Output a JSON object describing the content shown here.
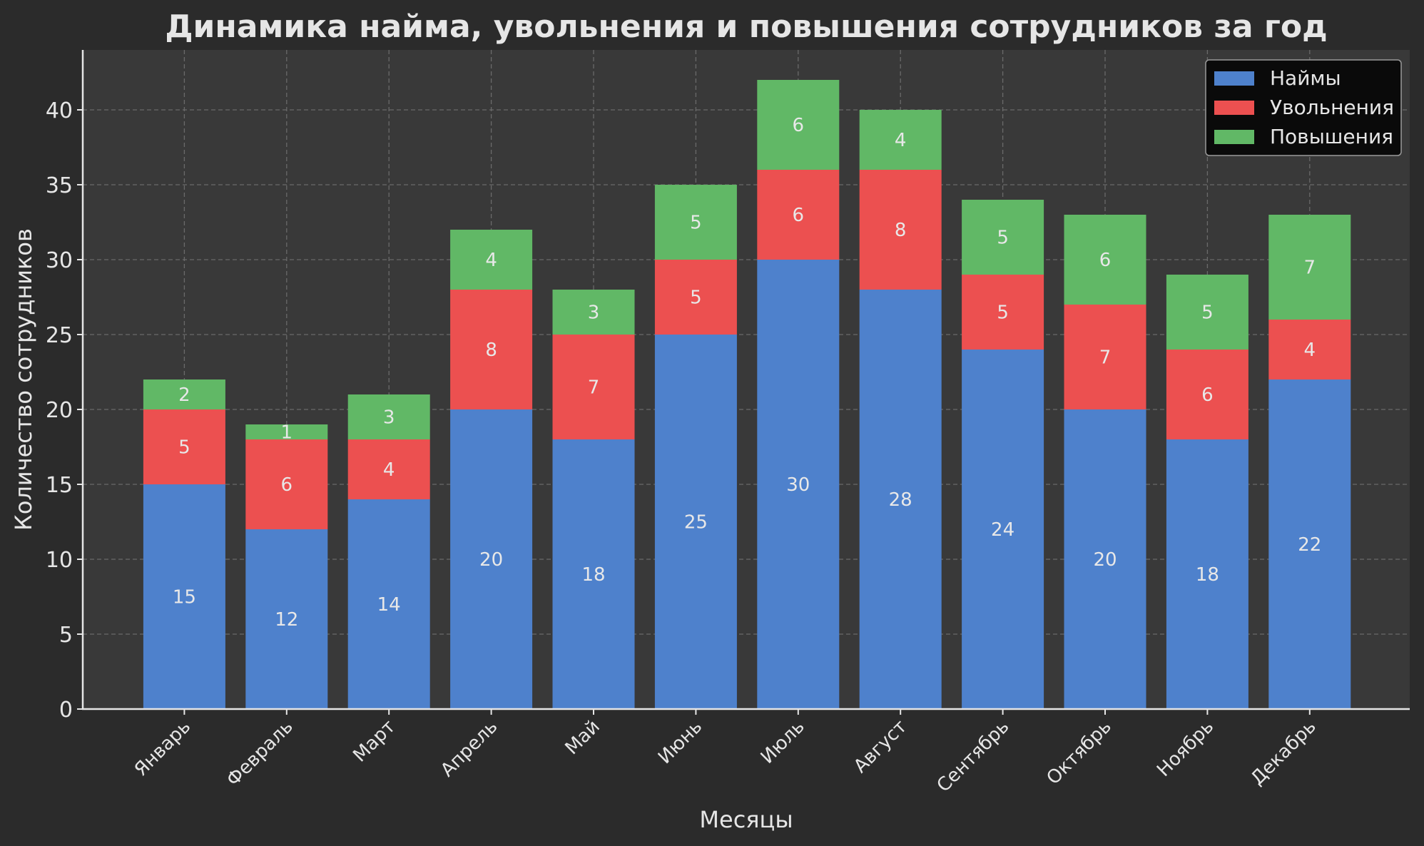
{
  "chart_data": {
    "type": "bar",
    "stacked": true,
    "title": "Динамика найма, увольнения и повышения сотрудников за год",
    "xlabel": "Месяцы",
    "ylabel": "Количество сотрудников",
    "categories": [
      "Январь",
      "Февраль",
      "Март",
      "Апрель",
      "Май",
      "Июнь",
      "Июль",
      "Август",
      "Сентябрь",
      "Октябрь",
      "Ноябрь",
      "Декабрь"
    ],
    "series": [
      {
        "name": "Наймы",
        "color": "#4e81cc",
        "values": [
          15,
          12,
          14,
          20,
          18,
          25,
          30,
          28,
          24,
          20,
          18,
          22
        ]
      },
      {
        "name": "Увольнения",
        "color": "#ec5050",
        "values": [
          5,
          6,
          4,
          8,
          7,
          5,
          6,
          8,
          5,
          7,
          6,
          4
        ]
      },
      {
        "name": "Повышения",
        "color": "#61b866",
        "values": [
          2,
          1,
          3,
          4,
          3,
          5,
          6,
          4,
          5,
          6,
          5,
          7
        ]
      }
    ],
    "ylim": [
      0,
      44
    ],
    "yticks": [
      0,
      5,
      10,
      15,
      20,
      25,
      30,
      35,
      40
    ],
    "grid": true,
    "legend": "top-right",
    "colors": {
      "background": "#2b2b2b",
      "plot_background": "#393939",
      "grid": "#6a6a6a",
      "text": "#e6e6e6"
    }
  }
}
